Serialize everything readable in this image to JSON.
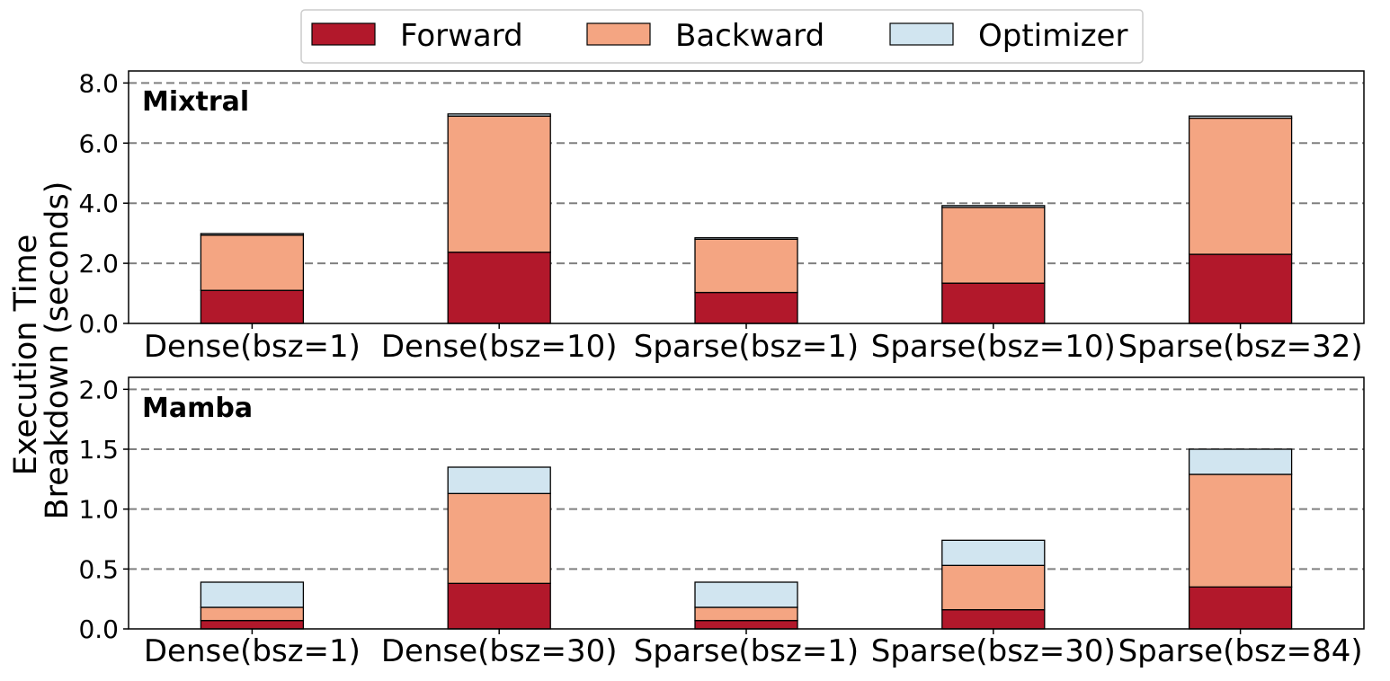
{
  "chart_data": {
    "type": "bar",
    "stacked": true,
    "ylabel": [
      "Execution Time",
      "Breakdown (seconds)"
    ],
    "legend": {
      "placement": "top-center",
      "entries": [
        "Forward",
        "Backward",
        "Optimizer"
      ]
    },
    "colors": {
      "Forward": "#b2182b",
      "Backward": "#f4a582",
      "Optimizer": "#d1e5f0"
    },
    "grid": "horizontal dashed",
    "panels": [
      {
        "title": "Mixtral",
        "categories": [
          "Dense(bsz=1)",
          "Dense(bsz=10)",
          "Sparse(bsz=1)",
          "Sparse(bsz=10)",
          "Sparse(bsz=32)"
        ],
        "ylim": [
          0,
          8.4
        ],
        "yticks": [
          "0.0",
          "2.0",
          "4.0",
          "6.0",
          "8.0"
        ],
        "ytick_values": [
          0,
          2,
          4,
          6,
          8
        ],
        "series": [
          {
            "name": "Forward",
            "values": [
              1.1,
              2.37,
              1.03,
              1.34,
              2.3
            ]
          },
          {
            "name": "Backward",
            "values": [
              1.84,
              4.53,
              1.77,
              2.52,
              4.53
            ]
          },
          {
            "name": "Optimizer",
            "values": [
              0.05,
              0.07,
              0.05,
              0.06,
              0.07
            ]
          }
        ]
      },
      {
        "title": "Mamba",
        "categories": [
          "Dense(bsz=1)",
          "Dense(bsz=30)",
          "Sparse(bsz=1)",
          "Sparse(bsz=30)",
          "Sparse(bsz=84)"
        ],
        "ylim": [
          0,
          2.1
        ],
        "yticks": [
          "0.0",
          "0.5",
          "1.0",
          "1.5",
          "2.0"
        ],
        "ytick_values": [
          0,
          0.5,
          1.0,
          1.5,
          2.0
        ],
        "series": [
          {
            "name": "Forward",
            "values": [
              0.07,
              0.38,
              0.07,
              0.16,
              0.35
            ]
          },
          {
            "name": "Backward",
            "values": [
              0.11,
              0.75,
              0.11,
              0.37,
              0.94
            ]
          },
          {
            "name": "Optimizer",
            "values": [
              0.21,
              0.22,
              0.21,
              0.21,
              0.21
            ]
          }
        ]
      }
    ]
  }
}
